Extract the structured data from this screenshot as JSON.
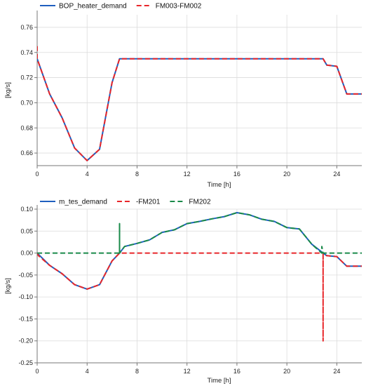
{
  "chart_data": [
    {
      "type": "line",
      "xlabel": "Time [h]",
      "ylabel": "[kg/s]",
      "xlim": [
        0,
        26
      ],
      "ylim": [
        0.65,
        0.77
      ],
      "xticks": [
        0,
        4,
        8,
        12,
        16,
        20,
        24
      ],
      "yticks": [
        0.66,
        0.68,
        0.7,
        0.72,
        0.74,
        0.76
      ],
      "xtick_labels": [
        "0",
        "4",
        "8",
        "12",
        "16",
        "20",
        "24"
      ],
      "ytick_labels": [
        "0.66",
        "0.68",
        "0.70",
        "0.72",
        "0.74",
        "0.76"
      ],
      "grid": true,
      "legend_position": "top-left",
      "series": [
        {
          "name": "BOP_heater_demand",
          "color": "#1f5fbf",
          "dash": "solid",
          "x": [
            0,
            1,
            2,
            3,
            4,
            5,
            6,
            6.6,
            22.9,
            23.2,
            24,
            24.8,
            26
          ],
          "y": [
            0.735,
            0.707,
            0.688,
            0.664,
            0.654,
            0.663,
            0.716,
            0.735,
            0.735,
            0.73,
            0.729,
            0.707,
            0.707
          ]
        },
        {
          "name": "FM003-FM002",
          "color": "#e8262a",
          "dash": "dashed",
          "x": [
            0,
            0,
            1,
            2,
            3,
            4,
            5,
            6,
            6.6,
            22.9,
            23.2,
            24,
            24.8,
            26
          ],
          "y": [
            0.745,
            0.735,
            0.707,
            0.688,
            0.664,
            0.654,
            0.663,
            0.716,
            0.735,
            0.735,
            0.73,
            0.729,
            0.707,
            0.707
          ]
        }
      ]
    },
    {
      "type": "line",
      "xlabel": "Time [h]",
      "ylabel": "[kg/s]",
      "xlim": [
        0,
        26
      ],
      "ylim": [
        -0.25,
        0.1
      ],
      "xticks": [
        0,
        4,
        8,
        12,
        16,
        20,
        24
      ],
      "yticks": [
        -0.25,
        -0.2,
        -0.15,
        -0.1,
        -0.05,
        0.0,
        0.05,
        0.1
      ],
      "xtick_labels": [
        "0",
        "4",
        "8",
        "12",
        "16",
        "20",
        "24"
      ],
      "ytick_labels": [
        "-0.25",
        "-0.20",
        "-0.15",
        "-0.10",
        "-0.05",
        "0.00",
        "0.05",
        "0.10"
      ],
      "grid": true,
      "legend_position": "top-left",
      "series": [
        {
          "name": "m_tes_demand",
          "color": "#1f5fbf",
          "dash": "solid",
          "x": [
            0,
            1,
            2,
            3,
            4,
            5,
            6,
            6.6,
            7,
            8,
            9,
            10,
            11,
            12,
            13,
            14,
            15,
            16,
            17,
            18,
            19,
            20,
            21,
            22,
            22.9,
            23.2,
            24,
            24.8,
            26
          ],
          "y": [
            0.0,
            -0.028,
            -0.047,
            -0.072,
            -0.082,
            -0.072,
            -0.018,
            0.0,
            0.015,
            0.022,
            0.03,
            0.047,
            0.053,
            0.067,
            0.072,
            0.078,
            0.083,
            0.092,
            0.087,
            0.077,
            0.072,
            0.058,
            0.055,
            0.02,
            0.0,
            -0.006,
            -0.008,
            -0.03,
            -0.03
          ]
        },
        {
          "name": "-FM201",
          "color": "#e8262a",
          "dash": "dashed",
          "x": [
            0,
            0.1,
            1,
            2,
            3,
            4,
            5,
            6,
            6.6,
            22.9,
            22.9,
            22.9,
            23.2,
            24,
            24.8,
            26
          ],
          "y": [
            0.0,
            -0.006,
            -0.028,
            -0.047,
            -0.072,
            -0.082,
            -0.072,
            -0.018,
            0.0,
            0.0,
            -0.2,
            -0.004,
            -0.006,
            -0.008,
            -0.03,
            -0.03
          ]
        },
        {
          "name": "FM202",
          "color": "#1a8a4a",
          "dash": "dashed",
          "x": [
            0,
            6.6,
            6.6,
            6.6,
            7,
            8,
            9,
            10,
            11,
            12,
            13,
            14,
            15,
            16,
            17,
            18,
            19,
            20,
            21,
            22,
            22.8,
            22.8,
            22.9,
            26
          ],
          "y": [
            0.0,
            0.0,
            0.067,
            0.0,
            0.015,
            0.022,
            0.03,
            0.047,
            0.053,
            0.067,
            0.072,
            0.078,
            0.083,
            0.092,
            0.087,
            0.077,
            0.072,
            0.058,
            0.055,
            0.02,
            0.0,
            0.015,
            0.0,
            0.0
          ]
        }
      ]
    }
  ]
}
